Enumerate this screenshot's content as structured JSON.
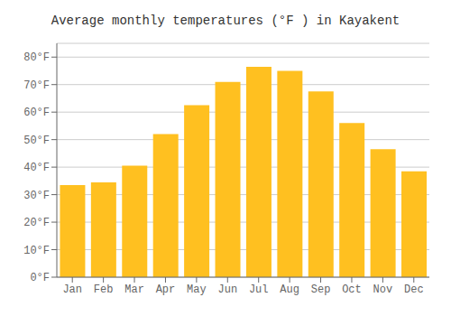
{
  "chart_data": {
    "type": "bar",
    "title": "Average monthly temperatures (°F ) in Kayakent",
    "categories": [
      "Jan",
      "Feb",
      "Mar",
      "Apr",
      "May",
      "Jun",
      "Jul",
      "Aug",
      "Sep",
      "Oct",
      "Nov",
      "Dec"
    ],
    "values": [
      33.5,
      34.5,
      40.5,
      52.0,
      62.5,
      71.0,
      76.5,
      75.0,
      67.5,
      56.0,
      46.5,
      38.5
    ],
    "color": "#FFC020",
    "ylim": [
      0,
      85
    ],
    "yticks": [
      {
        "value": 0,
        "label": "0°F"
      },
      {
        "value": 10,
        "label": "10°F"
      },
      {
        "value": 20,
        "label": "20°F"
      },
      {
        "value": 30,
        "label": "30°F"
      },
      {
        "value": 40,
        "label": "40°F"
      },
      {
        "value": 50,
        "label": "50°F"
      },
      {
        "value": 60,
        "label": "60°F"
      },
      {
        "value": 70,
        "label": "70°F"
      },
      {
        "value": 80,
        "label": "80°F"
      }
    ],
    "grid": true
  }
}
